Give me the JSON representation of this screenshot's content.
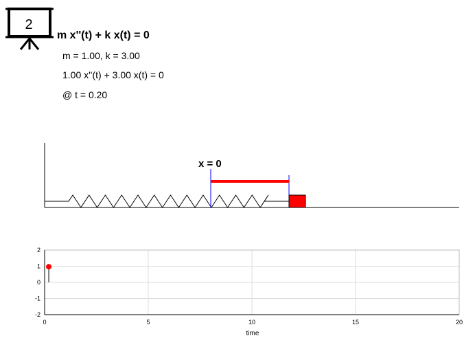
{
  "badge": {
    "number": "2",
    "icon": "presentation-board-icon"
  },
  "equation": {
    "general": "m x''(t) + k x(t) = 0",
    "params": "m = 1.00, k = 3.00",
    "specific": "1.00 x''(t) + 3.00 x(t) = 0",
    "time": "@ t = 0.20"
  },
  "spring_diagram": {
    "equilibrium_label": "x = 0",
    "displacement_color": "#ff0000",
    "mass_color": "#ff0000",
    "marker_color": "#0000ff"
  },
  "chart_data": {
    "type": "line",
    "xlabel": "time",
    "xlim": [
      0,
      20
    ],
    "ylim": [
      -2,
      2
    ],
    "x_ticks": [
      "0",
      "5",
      "10",
      "15",
      "20"
    ],
    "y_ticks": [
      "2",
      "1",
      "0",
      "-1",
      "-2"
    ],
    "grid": true,
    "series": [
      {
        "x": [
          0.2,
          0.2
        ],
        "y": [
          0,
          0.97
        ],
        "color": "#000000"
      }
    ],
    "current_point": {
      "x": 0.2,
      "y": 0.97,
      "color": "#ff0000"
    }
  }
}
